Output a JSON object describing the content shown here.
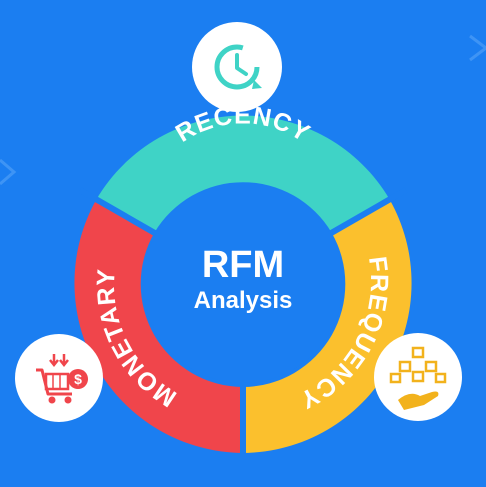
{
  "center": {
    "title": "RFM",
    "subtitle": "Analysis"
  },
  "segments": [
    {
      "label": "RECENCY",
      "color": "#3fd3c6",
      "icon": "clock-refresh-icon"
    },
    {
      "label": "FREQUENCY",
      "color": "#fbc02d",
      "icon": "hand-with-boxes-icon"
    },
    {
      "label": "MONETARY",
      "color": "#f0454b",
      "icon": "shopping-cart-dollar-icon"
    }
  ],
  "colors": {
    "background": "#1b7ef1",
    "center_fill": "#1b7ef1",
    "icon_circle": "#ffffff"
  }
}
